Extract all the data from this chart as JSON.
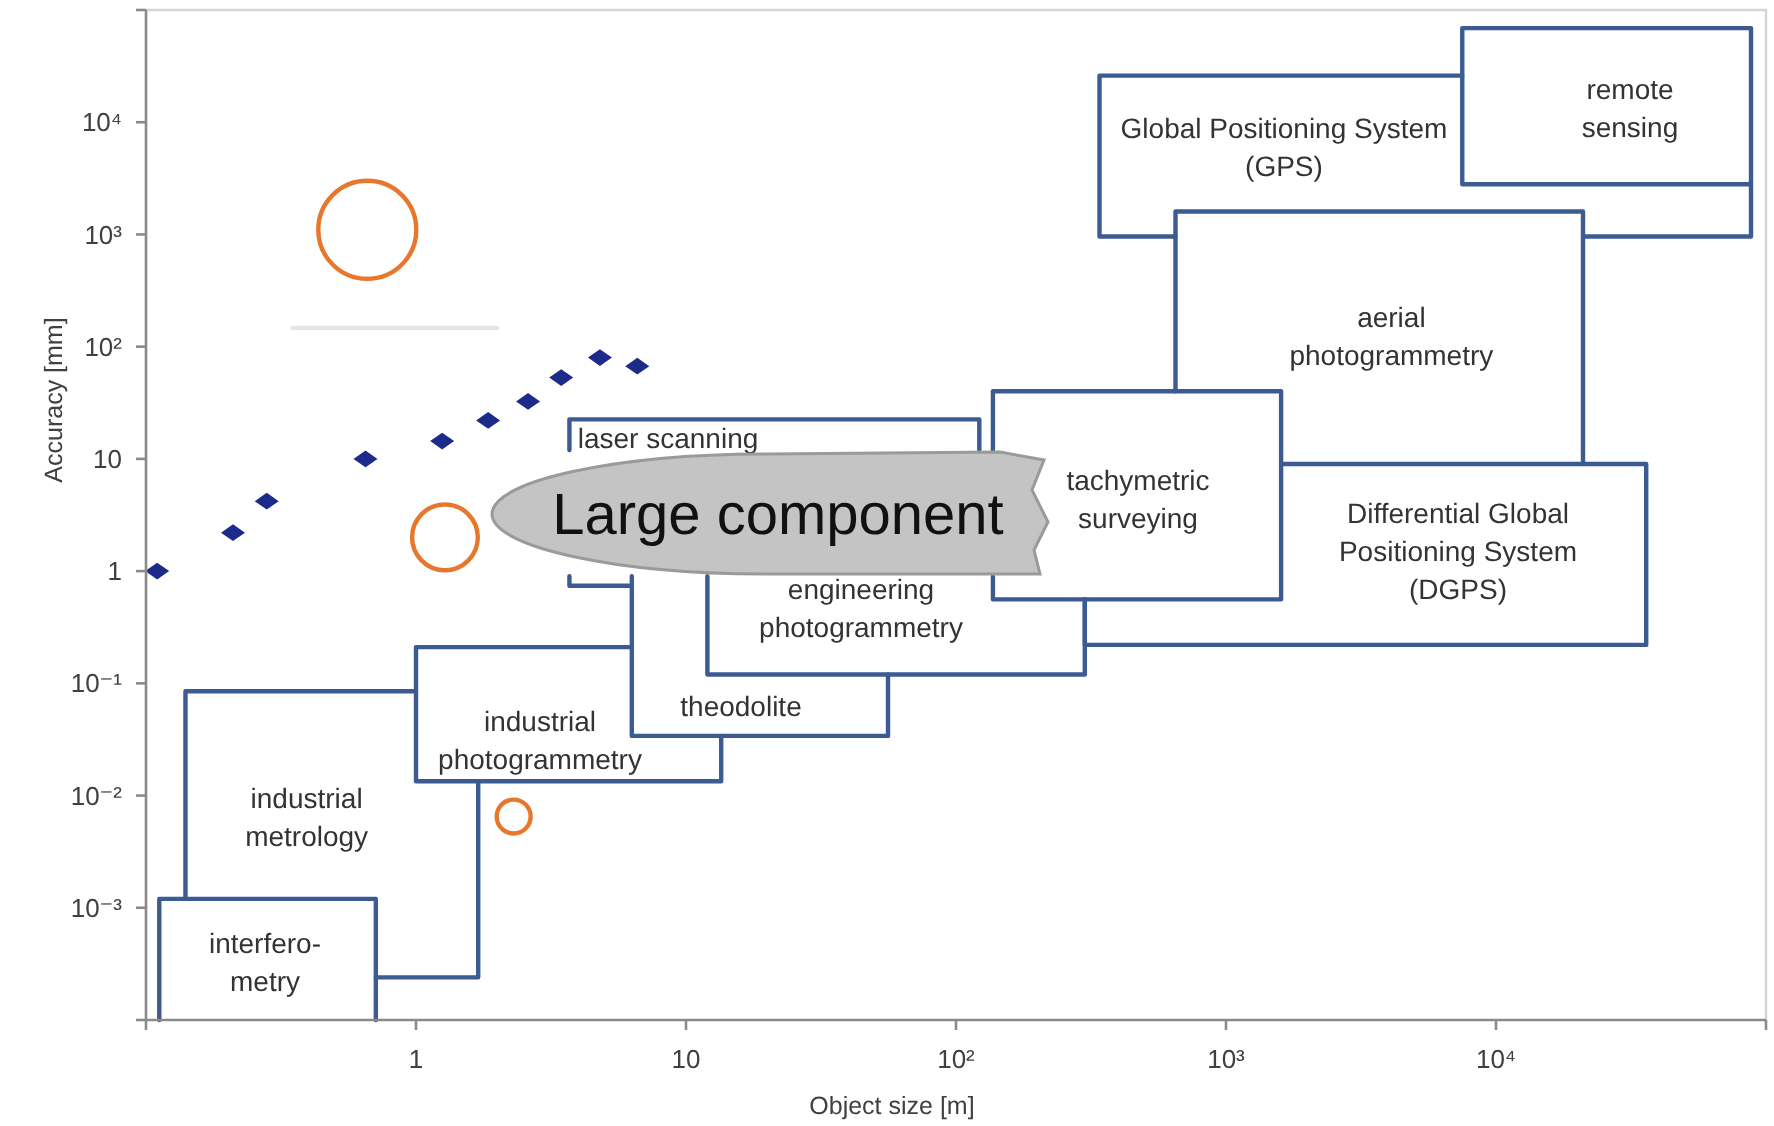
{
  "chart_data": {
    "type": "scatter",
    "xlabel": "Object size [m]",
    "ylabel": "Accuracy [mm]",
    "log": "xy",
    "xlim": [
      0.1,
      100000
    ],
    "ylim": [
      0.0001,
      100000
    ],
    "xticks": [
      {
        "value": 0.1,
        "label": null
      },
      1,
      10,
      {
        "value": 100,
        "label": "10²"
      },
      {
        "value": 1000,
        "label": "10³"
      },
      {
        "value": 10000,
        "label": "10⁴"
      },
      {
        "value": 100000,
        "label": null
      }
    ],
    "yticks": [
      {
        "value": 0.0001,
        "label": null
      },
      {
        "value": 0.001,
        "label": "10⁻³"
      },
      {
        "value": 0.01,
        "label": "10⁻²"
      },
      {
        "value": 0.1,
        "label": "10⁻¹"
      },
      1,
      10,
      {
        "value": 100,
        "label": "10²"
      },
      {
        "value": 1000,
        "label": "10³"
      },
      {
        "value": 10000,
        "label": "10⁴"
      },
      {
        "value": 100000,
        "label": null
      }
    ],
    "series": [
      {
        "type": "line",
        "color": "#3b5b92",
        "x": [
          7500,
          340,
          340,
          650,
          null,
          21000,
          88000,
          88000
        ],
        "values": [
          26000,
          26000,
          960,
          960,
          null,
          960,
          960,
          2800
        ]
      },
      {
        "type": "line",
        "color": "#3b5b92",
        "x": [
          7500,
          7500,
          88000,
          88000,
          7600
        ],
        "values": [
          2800,
          69000,
          69000,
          2800,
          2800
        ]
      },
      {
        "type": "line",
        "color": "#3b5b92",
        "x": [
          650,
          650,
          21000,
          21000
        ],
        "values": [
          40,
          1600,
          1600,
          9
        ]
      },
      {
        "type": "line",
        "color": "#3b5b92",
        "x": [
          0.14,
          0.14,
          1,
          null,
          1.7,
          1.7,
          0.71
        ],
        "values": [
          0.0012,
          0.085,
          0.085,
          null,
          0.0134,
          0.00024,
          0.00024
        ]
      },
      {
        "type": "line",
        "color": "#3b5b92",
        "x": [
          0.112,
          0.112,
          0.71,
          0.71
        ],
        "values": [
          0.0001,
          0.0012,
          0.0012,
          0.0001
        ]
      },
      {
        "type": "line",
        "color": "#3b5b92",
        "x": [
          6.3,
          1,
          1,
          13.5,
          13.5
        ],
        "values": [
          0.21,
          0.21,
          0.0134,
          0.0134,
          0.034
        ]
      },
      {
        "type": "line",
        "color": "#3b5b92",
        "x": [
          122,
          122,
          3.7,
          3.7,
          null,
          3.7,
          3.7,
          6.3
        ],
        "values": [
          12,
          22.5,
          22.5,
          12,
          null,
          0.9,
          0.74,
          0.74
        ]
      },
      {
        "type": "line",
        "color": "#3b5b92",
        "x": [
          6.3,
          6.3,
          56,
          56
        ],
        "values": [
          0.9,
          0.034,
          0.034,
          0.12
        ]
      },
      {
        "type": "line",
        "color": "#3b5b92",
        "x": [
          12,
          12,
          300,
          300
        ],
        "values": [
          0.9,
          0.12,
          0.12,
          0.56
        ]
      },
      {
        "type": "line",
        "color": "#3b5b92",
        "x": [
          1600,
          36000,
          36000,
          300,
          300
        ],
        "values": [
          9,
          9,
          0.22,
          0.22,
          0.56
        ]
      },
      {
        "type": "line",
        "color": "#3b5b92",
        "x": [
          137,
          137,
          1600,
          1600,
          137,
          137
        ],
        "values": [
          0.9,
          0.56,
          0.56,
          40,
          40,
          12
        ]
      },
      {
        "color": "#1c2b8a",
        "marker": "diamond",
        "x": [
          0.11,
          0.21,
          0.28,
          0.65,
          1.25,
          1.85,
          2.6,
          3.45,
          4.8,
          6.6
        ],
        "values": [
          1,
          2.2,
          4.2,
          10,
          14.4,
          22,
          32.5,
          53,
          80,
          67
        ]
      },
      {
        "type": "bubble",
        "color": "#e8772e",
        "x": [
          0.66,
          1.28,
          2.3
        ],
        "values": [
          1100,
          2,
          0.0065
        ],
        "sizes": [
          1,
          0.45,
          0.12
        ]
      },
      {
        "type": "line",
        "color": "#e4e4e4",
        "x": [
          0.35,
          2
        ],
        "values": [
          147,
          147
        ]
      }
    ],
    "annotations": [
      "interfero-\nmetry",
      "industrial\nmetrology",
      "industrial\nphotogrammetry",
      "theodolite",
      "laser scanning",
      "engineering\nphotogrammetry",
      "tachymetric\nsurveying",
      "Differential Global\nPositioning System\n(DGPS)",
      "aerial\nphotogrammetry",
      "Global Positioning System\n(GPS)",
      "remote\nsensing",
      "Large component"
    ]
  }
}
